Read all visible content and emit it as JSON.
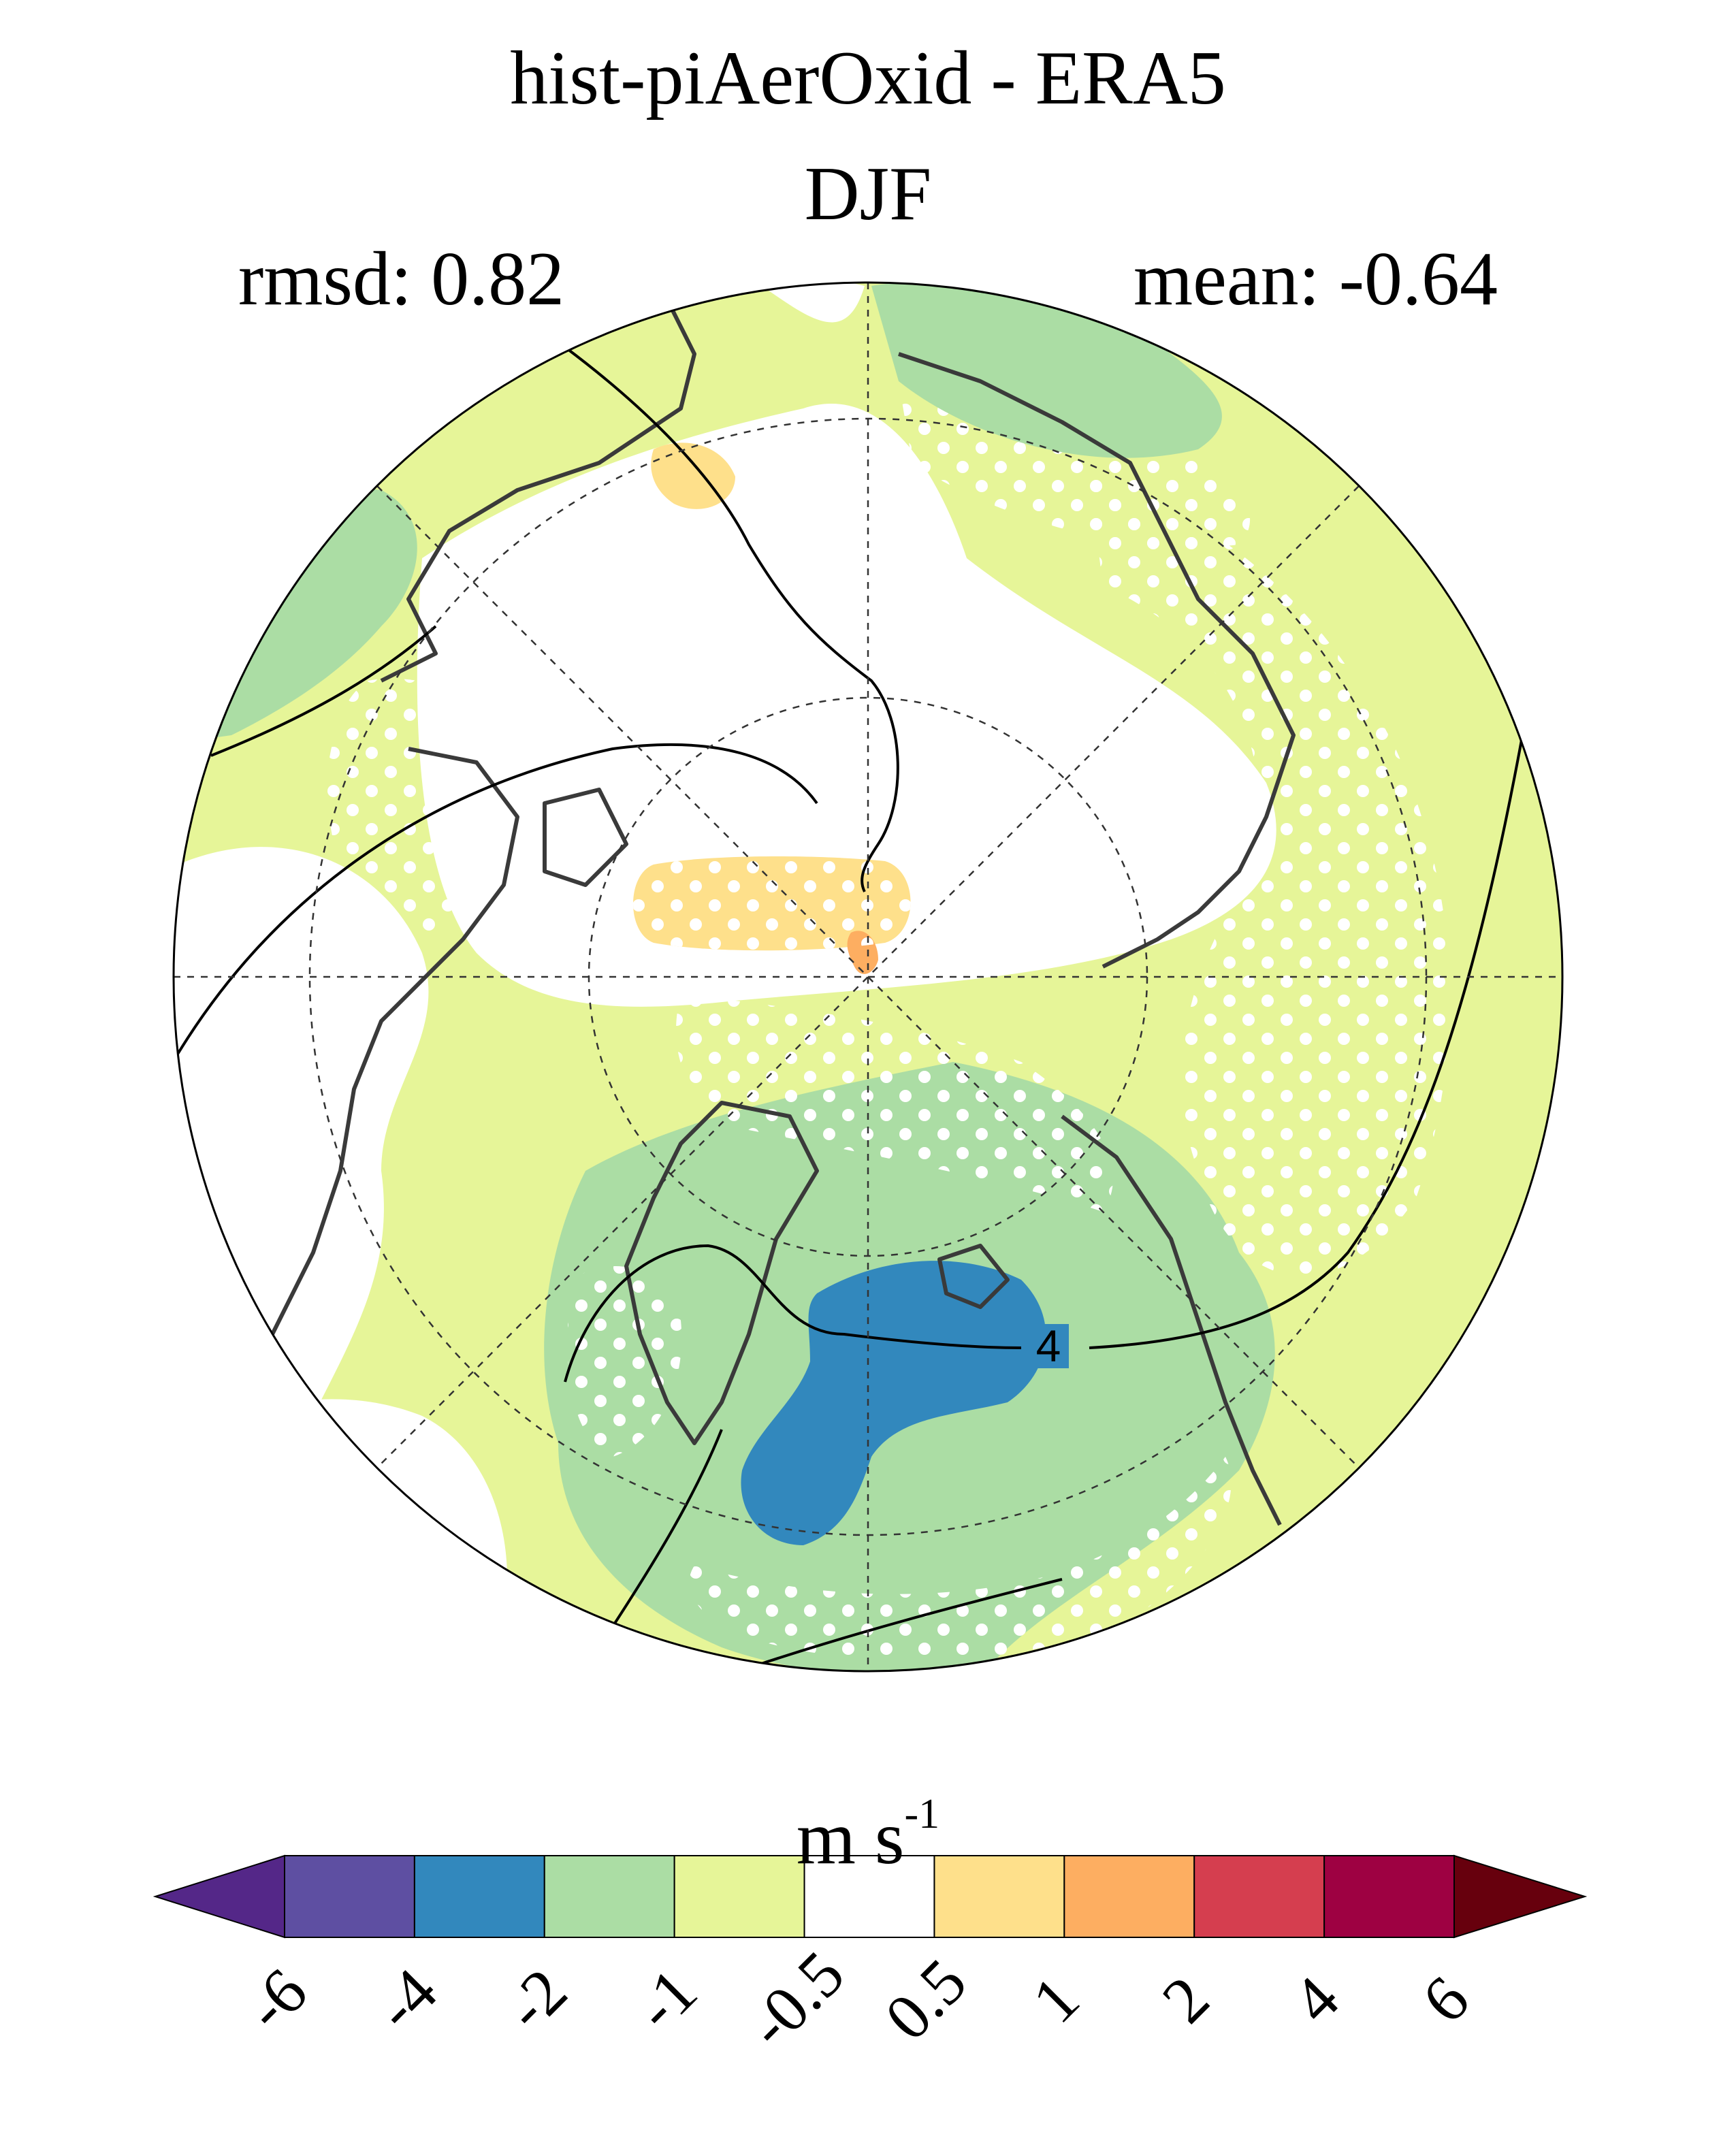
{
  "title": "hist-piAerOxid - ERA5",
  "subtitle": "DJF",
  "stats": {
    "rmsd": "rmsd: 0.82",
    "mean": "mean: -0.64"
  },
  "contour_label": "4",
  "units": {
    "base": "m s",
    "exponent": "-1"
  },
  "colorbar": {
    "ticks": [
      "-6",
      "-4",
      "-2",
      "-1",
      "-0.5",
      "0.5",
      "1",
      "2",
      "4",
      "6"
    ],
    "colors": [
      "#5e4fa2",
      "#3288bd",
      "#abdda4",
      "#e6f598",
      "#ffffff",
      "#fee08b",
      "#fdae61",
      "#d53e4f",
      "#9e0142"
    ],
    "low_extend_color": "#542788",
    "high_extend_color": "#67000d"
  },
  "map_colors": {
    "light_green": "#e6f598",
    "green": "#abdda4",
    "blue": "#3288bd",
    "yellow": "#fee08b",
    "orange": "#fdae61",
    "coast": "#3a3a3a"
  }
}
